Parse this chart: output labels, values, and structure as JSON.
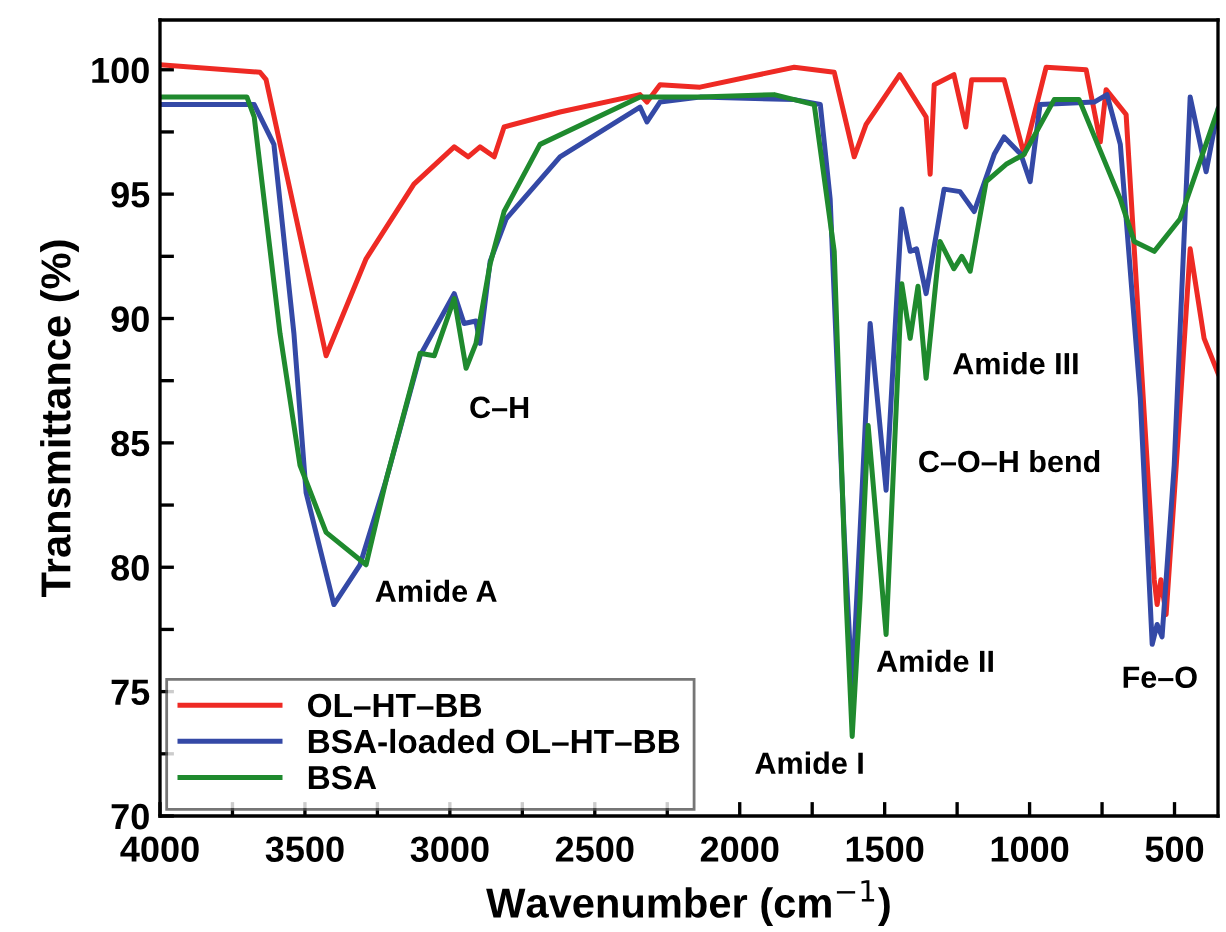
{
  "chart_data": {
    "type": "line",
    "xlabel": "Wavenumber (cm$^{−1}$)",
    "ylabel": "Transmittance (%)",
    "xlim": [
      4000,
      350
    ],
    "ylim": [
      70,
      102
    ],
    "xticks": [
      4000,
      {
        "value": 3750,
        "label": null
      },
      3500,
      {
        "value": 3250,
        "label": null
      },
      3000,
      {
        "value": 2750,
        "label": null
      },
      2500,
      {
        "value": 2250,
        "label": null
      },
      2000,
      {
        "value": 1750,
        "label": null
      },
      1500,
      {
        "value": 1250,
        "label": null
      },
      1000,
      {
        "value": 750,
        "label": null
      },
      500
    ],
    "yticks": [
      70,
      {
        "value": 72.5,
        "label": null
      },
      75,
      {
        "value": 77.5,
        "label": null
      },
      80,
      {
        "value": 82.5,
        "label": null
      },
      85,
      {
        "value": 87.5,
        "label": null
      },
      90,
      {
        "value": 92.5,
        "label": null
      },
      95,
      {
        "value": 97.5,
        "label": null
      },
      100
    ],
    "grid": false,
    "legend": "bottom left",
    "line_style": "solid",
    "marker": "none",
    "series": [
      {
        "name": "OL–HT–BB",
        "color": "#ee2a24",
        "x": [
          4000,
          3655,
          3634,
          3427,
          3289,
          3124,
          2985,
          2937,
          2896,
          2847,
          2813,
          2620,
          2344,
          2320,
          2275,
          2137,
          1812,
          1674,
          1605,
          1564,
          1448,
          1357,
          1343,
          1329,
          1261,
          1220,
          1200,
          1088,
          1019,
          943,
          805,
          756,
          736,
          667,
          570,
          560,
          547,
          529,
          494,
          446,
          398,
          350
        ],
        "values": [
          100.2,
          99.9,
          99.6,
          88.5,
          92.4,
          95.4,
          96.9,
          96.5,
          96.9,
          96.5,
          97.7,
          98.3,
          99.0,
          98.7,
          99.4,
          99.3,
          100.1,
          99.9,
          96.5,
          97.8,
          99.8,
          98.1,
          95.8,
          99.4,
          99.8,
          97.7,
          99.6,
          99.6,
          96.6,
          100.1,
          100.0,
          97.1,
          99.2,
          98.2,
          79.5,
          78.5,
          79.5,
          78.1,
          84.1,
          92.8,
          89.2,
          87.8
        ]
      },
      {
        "name": "BSA-loaded OL–HT–BB",
        "color": "#3449a6",
        "x": [
          4000,
          3675,
          3607,
          3538,
          3496,
          3400,
          3310,
          3220,
          3103,
          2985,
          2951,
          2910,
          2896,
          2861,
          2806,
          2620,
          2344,
          2320,
          2275,
          2137,
          1812,
          1722,
          1688,
          1640,
          1612,
          1585,
          1550,
          1495,
          1441,
          1412,
          1390,
          1357,
          1295,
          1240,
          1191,
          1122,
          1088,
          1030,
          998,
          964,
          777,
          733,
          687,
          618,
          577,
          560,
          543,
          501,
          446,
          391,
          350
        ],
        "values": [
          98.6,
          98.6,
          97.0,
          89.4,
          83.0,
          78.5,
          80.1,
          83.5,
          88.5,
          91.0,
          89.8,
          89.9,
          89.0,
          92.3,
          94.0,
          96.5,
          98.5,
          97.9,
          98.7,
          98.9,
          98.8,
          98.6,
          94.8,
          81.4,
          75.1,
          81.4,
          89.8,
          83.1,
          94.4,
          92.7,
          92.8,
          91.0,
          95.2,
          95.1,
          94.3,
          96.6,
          97.3,
          96.6,
          95.5,
          98.6,
          98.7,
          99.0,
          97.0,
          86.8,
          76.9,
          77.7,
          77.2,
          84.1,
          98.9,
          95.9,
          98.4
        ]
      },
      {
        "name": "BSA",
        "color": "#1f8a2e",
        "x": [
          4000,
          3700,
          3675,
          3586,
          3517,
          3427,
          3289,
          3220,
          3103,
          3054,
          2985,
          2944,
          2910,
          2861,
          2813,
          2689,
          2344,
          2137,
          1881,
          1743,
          1674,
          1633,
          1612,
          1585,
          1557,
          1495,
          1441,
          1412,
          1385,
          1357,
          1309,
          1261,
          1234,
          1205,
          1150,
          1081,
          1019,
          915,
          829,
          687,
          639,
          570,
          481,
          350
        ],
        "values": [
          98.9,
          98.9,
          98.1,
          89.4,
          84.1,
          81.4,
          80.1,
          83.5,
          88.6,
          88.5,
          90.8,
          88.0,
          89.0,
          92.2,
          94.3,
          97.0,
          98.9,
          98.9,
          99.0,
          98.6,
          92.7,
          78.7,
          73.2,
          78.7,
          85.7,
          77.3,
          91.4,
          89.2,
          91.3,
          87.6,
          93.1,
          92.0,
          92.5,
          91.9,
          95.5,
          96.2,
          96.6,
          98.8,
          98.8,
          94.8,
          93.1,
          92.7,
          94.0,
          98.4
        ]
      }
    ],
    "annotations": [
      "Amide A",
      "C–H",
      "Amide I",
      "Amide II",
      "C–O–H bend",
      "Amide III",
      "Fe–O"
    ]
  }
}
